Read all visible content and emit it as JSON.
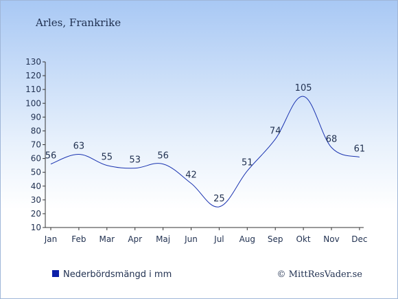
{
  "title": "Arles, Frankrike",
  "legend_label": "Nederbördsmängd i mm",
  "copyright": "© MittResVader.se",
  "colors": {
    "line": "#1a33b0",
    "legend_swatch": "#0c1fa8",
    "bg_top": "#a8c8f4",
    "bg_bottom": "#ffffff",
    "text": "#1f2f4f"
  },
  "chart_data": {
    "type": "line",
    "categories": [
      "Jan",
      "Feb",
      "Mar",
      "Apr",
      "Maj",
      "Jun",
      "Jul",
      "Aug",
      "Sep",
      "Okt",
      "Nov",
      "Dec"
    ],
    "series": [
      {
        "name": "Nederbördsmängd i mm",
        "values": [
          56,
          63,
          55,
          53,
          56,
          42,
          25,
          51,
          74,
          105,
          68,
          61
        ]
      }
    ],
    "ylim": [
      10,
      130
    ],
    "yticks": [
      10,
      20,
      30,
      40,
      50,
      60,
      70,
      80,
      90,
      100,
      110,
      120,
      130
    ],
    "data_labels": true,
    "grid": false,
    "legend": "bottom-left"
  }
}
